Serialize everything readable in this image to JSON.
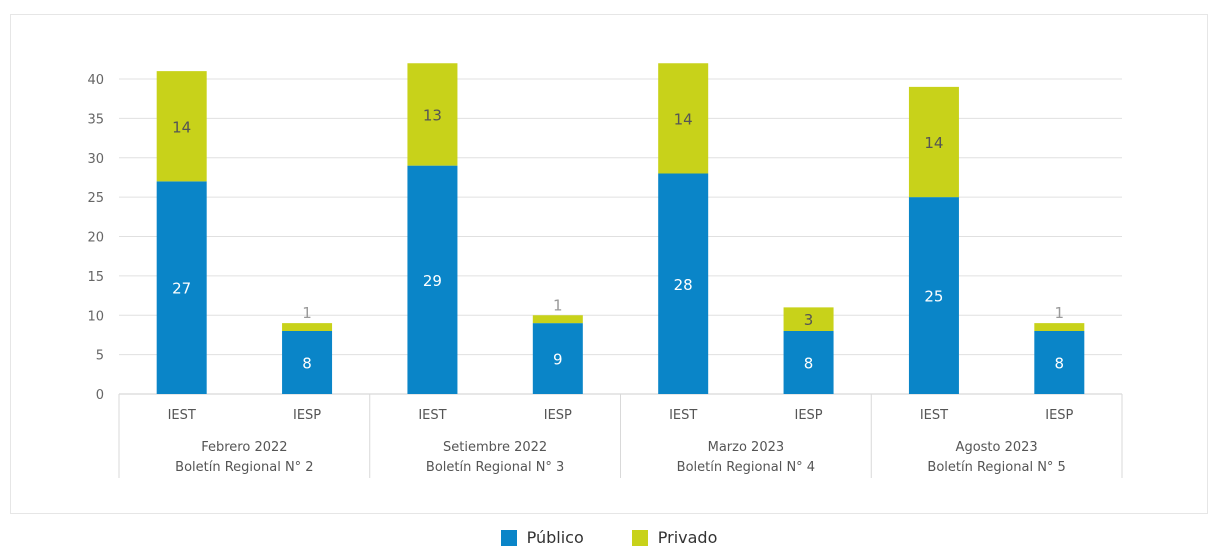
{
  "chart_data": {
    "type": "bar",
    "stacked": true,
    "groups": [
      {
        "line1": "Febrero 2022",
        "line2": "Boletín Regional N° 2",
        "categories": [
          "IEST",
          "IESP"
        ]
      },
      {
        "line1": "Setiembre 2022",
        "line2": "Boletín Regional N° 3",
        "categories": [
          "IEST",
          "IESP"
        ]
      },
      {
        "line1": "Marzo 2023",
        "line2": "Boletín Regional N° 4",
        "categories": [
          "IEST",
          "IESP"
        ]
      },
      {
        "line1": "Agosto 2023",
        "line2": "Boletín Regional N° 5",
        "categories": [
          "IEST",
          "IESP"
        ]
      }
    ],
    "categories": [
      "IEST",
      "IESP",
      "IEST",
      "IESP",
      "IEST",
      "IESP",
      "IEST",
      "IESP"
    ],
    "series": [
      {
        "name": "Público",
        "color": "#0a85c8",
        "values": [
          27,
          8,
          29,
          9,
          28,
          8,
          25,
          8
        ]
      },
      {
        "name": "Privado",
        "color": "#c8d21a",
        "values": [
          14,
          1,
          13,
          1,
          14,
          3,
          14,
          1
        ]
      }
    ],
    "ylim": [
      0,
      40
    ],
    "yticks": [
      "0",
      "5",
      "10",
      "15",
      "20",
      "25",
      "30",
      "35",
      "40"
    ],
    "grid": true,
    "legend_position": "bottom"
  }
}
